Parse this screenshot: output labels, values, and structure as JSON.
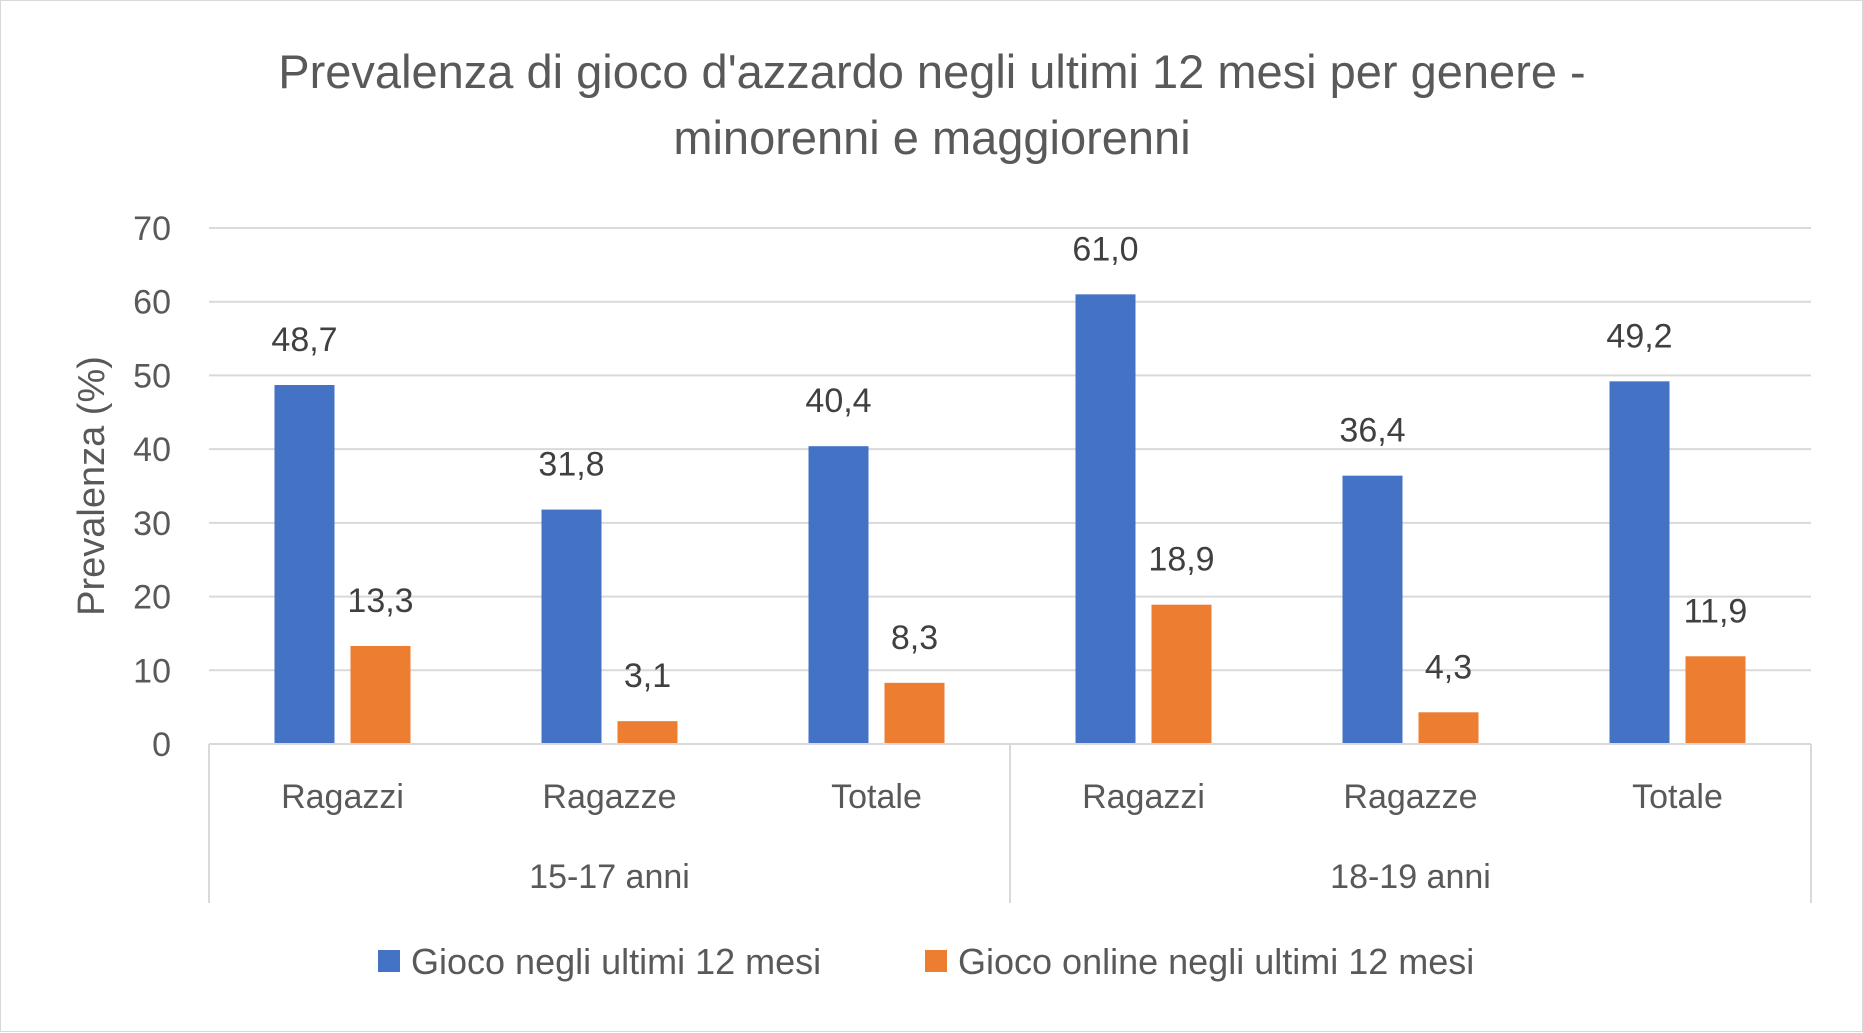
{
  "chart_data": {
    "type": "bar",
    "title_lines": [
      "Prevalenza di gioco d'azzardo negli ultimi 12 mesi per genere -",
      "minorenni e maggiorenni"
    ],
    "ylabel": "Prevalenza (%)",
    "xlabel": "",
    "ylim": [
      0,
      70
    ],
    "yticks": [
      "0",
      "10",
      "20",
      "30",
      "40",
      "50",
      "60",
      "70"
    ],
    "grid": true,
    "legend_position": "bottom",
    "groups": [
      {
        "label": "15-17 anni",
        "categories": [
          "Ragazzi",
          "Ragazze",
          "Totale"
        ]
      },
      {
        "label": "18-19 anni",
        "categories": [
          "Ragazzi",
          "Ragazze",
          "Totale"
        ]
      }
    ],
    "categories": [
      "Ragazzi",
      "Ragazze",
      "Totale",
      "Ragazzi",
      "Ragazze",
      "Totale"
    ],
    "series": [
      {
        "name": "Gioco negli ultimi 12 mesi",
        "color": "#4472C4",
        "values": [
          48.7,
          31.8,
          40.4,
          61.0,
          36.4,
          49.2
        ],
        "labels": [
          "48,7",
          "31,8",
          "40,4",
          "61,0",
          "36,4",
          "49,2"
        ]
      },
      {
        "name": "Gioco online negli ultimi 12 mesi",
        "color": "#ED7D31",
        "values": [
          13.3,
          3.1,
          8.3,
          18.9,
          4.3,
          11.9
        ],
        "labels": [
          "13,3",
          "3,1",
          "8,3",
          "18,9",
          "4,3",
          "11,9"
        ]
      }
    ]
  }
}
